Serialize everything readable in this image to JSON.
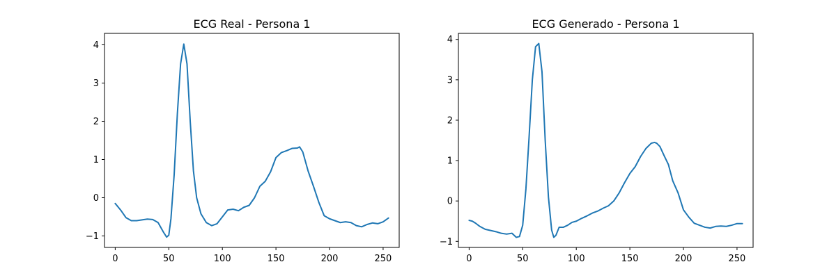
{
  "chart_data": [
    {
      "type": "line",
      "title": "ECG Real - Persona 1",
      "xlabel": "",
      "ylabel": "",
      "xlim": [
        -10,
        265
      ],
      "ylim": [
        -1.3,
        4.3
      ],
      "xticks": [
        0,
        50,
        100,
        150,
        200,
        250
      ],
      "yticks": [
        -1,
        0,
        1,
        2,
        3,
        4
      ],
      "grid": false,
      "series": [
        {
          "color": "#1f77b4",
          "x": [
            0,
            5,
            10,
            15,
            20,
            25,
            30,
            35,
            40,
            45,
            48,
            50,
            52,
            55,
            58,
            61,
            64,
            67,
            70,
            73,
            76,
            80,
            85,
            90,
            95,
            100,
            105,
            110,
            115,
            120,
            125,
            130,
            135,
            140,
            145,
            150,
            155,
            160,
            165,
            170,
            172,
            175,
            180,
            185,
            190,
            195,
            200,
            205,
            210,
            215,
            220,
            225,
            230,
            235,
            240,
            245,
            250,
            255
          ],
          "y": [
            -0.15,
            -0.32,
            -0.52,
            -0.6,
            -0.6,
            -0.58,
            -0.56,
            -0.57,
            -0.65,
            -0.9,
            -1.03,
            -0.98,
            -0.55,
            0.6,
            2.2,
            3.5,
            4.02,
            3.5,
            2.0,
            0.7,
            0.0,
            -0.42,
            -0.65,
            -0.73,
            -0.68,
            -0.5,
            -0.32,
            -0.3,
            -0.34,
            -0.25,
            -0.2,
            0.0,
            0.3,
            0.43,
            0.68,
            1.05,
            1.18,
            1.23,
            1.29,
            1.3,
            1.33,
            1.2,
            0.7,
            0.3,
            -0.12,
            -0.47,
            -0.55,
            -0.6,
            -0.65,
            -0.63,
            -0.65,
            -0.73,
            -0.76,
            -0.7,
            -0.66,
            -0.68,
            -0.63,
            -0.53
          ]
        }
      ]
    },
    {
      "type": "line",
      "title": "ECG Generado - Persona 1",
      "xlabel": "",
      "ylabel": "",
      "xlim": [
        -10,
        265
      ],
      "ylim": [
        -1.15,
        4.15
      ],
      "xticks": [
        0,
        50,
        100,
        150,
        200,
        250
      ],
      "yticks": [
        -1,
        0,
        1,
        2,
        3,
        4
      ],
      "grid": false,
      "series": [
        {
          "color": "#1f77b4",
          "x": [
            0,
            3,
            6,
            10,
            15,
            20,
            25,
            30,
            35,
            40,
            44,
            47,
            50,
            53,
            56,
            59,
            62,
            65,
            68,
            71,
            74,
            77,
            79,
            81,
            84,
            88,
            92,
            96,
            100,
            105,
            110,
            115,
            120,
            125,
            130,
            135,
            140,
            145,
            150,
            155,
            160,
            165,
            170,
            173,
            175,
            178,
            182,
            186,
            190,
            195,
            200,
            205,
            210,
            215,
            220,
            225,
            230,
            235,
            240,
            245,
            250,
            255
          ],
          "y": [
            -0.48,
            -0.5,
            -0.55,
            -0.63,
            -0.7,
            -0.73,
            -0.76,
            -0.8,
            -0.82,
            -0.8,
            -0.9,
            -0.88,
            -0.6,
            0.3,
            1.6,
            3.0,
            3.82,
            3.9,
            3.2,
            1.5,
            0.1,
            -0.72,
            -0.9,
            -0.85,
            -0.65,
            -0.65,
            -0.6,
            -0.53,
            -0.5,
            -0.43,
            -0.37,
            -0.3,
            -0.25,
            -0.18,
            -0.12,
            0.0,
            0.2,
            0.45,
            0.68,
            0.85,
            1.1,
            1.3,
            1.43,
            1.45,
            1.43,
            1.35,
            1.12,
            0.9,
            0.5,
            0.2,
            -0.22,
            -0.4,
            -0.55,
            -0.6,
            -0.65,
            -0.67,
            -0.63,
            -0.62,
            -0.63,
            -0.6,
            -0.56,
            -0.56
          ]
        }
      ]
    }
  ]
}
